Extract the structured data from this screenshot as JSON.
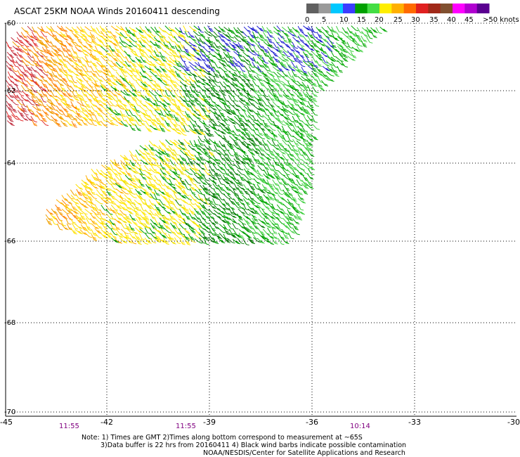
{
  "title": "ASCAT 25KM NOAA Winds 20160411 descending",
  "legend": {
    "labels": [
      "0",
      "5",
      "10",
      "15",
      "20",
      "25",
      "30",
      "35",
      "40",
      "45",
      ">50 knots"
    ],
    "colors": [
      "#606060",
      "#9a9a9a",
      "#00c8ff",
      "#3c3cff",
      "#00a000",
      "#44dd44",
      "#ffee00",
      "#ffb000",
      "#ff6a00",
      "#e02020",
      "#a02818",
      "#805030",
      "#ff00ff",
      "#b000d0",
      "#5a0090"
    ]
  },
  "lat_labels": [
    "-60",
    "-62",
    "-64",
    "-66",
    "-68",
    "-70"
  ],
  "lon_labels": [
    "-45",
    "-42",
    "-39",
    "-36",
    "-33",
    "-30"
  ],
  "time_labels": [
    "11:55",
    "11:55",
    "10:14"
  ],
  "notes": {
    "line1": "Note: 1) Times are GMT 2)Times along bottom correspond to measurement at ~65S",
    "line2": "3)Data buffer is 22 hrs from 20160411 4) Black wind barbs indicate possible contamination",
    "line3": "NOAA/NESDIS/Center for Satellite Applications and Research"
  },
  "colors": {
    "grid": "#000000",
    "time_label": "#800080"
  }
}
